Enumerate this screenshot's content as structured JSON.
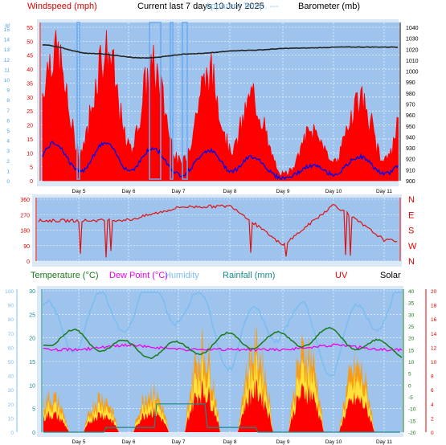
{
  "header": {
    "windspeed_label": "Windspeed (mph)",
    "title": "Current last 7 days 10 July 2025",
    "overlap_label": "Apparent Temp. ---",
    "barometer_label": "Barometer (mb)"
  },
  "day_labels": [
    "Day 5",
    "Day 6",
    "Day 7",
    "Day 8",
    "Day 9",
    "Day 10",
    "Day 11"
  ],
  "bottom_header": {
    "temperature": "Temperature (°C)",
    "dewpoint": "Dew Point (°C)",
    "humidity": "Humidity",
    "rainfall": "Rainfall (mm)",
    "uv": "UV",
    "solar": "Solar"
  },
  "colors": {
    "plot_bg": "#9ec4ee",
    "outer_bg": "#dbe8f6",
    "gust": "#ff0000",
    "wind_avg": "#0000ee",
    "barometer": "#222222",
    "direction": "#e01010",
    "temperature": "#1a7a1a",
    "dewpoint": "#ee00ee",
    "humidity": "#7bbdf0",
    "rainfall": "#1a8a8a",
    "solar": "#ffee40",
    "uv": "#ff9900",
    "uv_peak": "#ff0000",
    "grid": "#ffffff"
  },
  "chart_data": [
    {
      "type": "line",
      "panel": "wind-barometer",
      "x": [
        "Day 5",
        "Day 6",
        "Day 7",
        "Day 8",
        "Day 9",
        "Day 10",
        "Day 11"
      ],
      "series": [
        {
          "name": "Windspeed (mph)",
          "values": [
            20,
            27,
            12,
            25,
            2,
            14,
            15
          ]
        },
        {
          "name": "Barometer (mb)",
          "values": [
            1024,
            1016,
            1012,
            1016,
            1019,
            1021,
            1022
          ]
        }
      ],
      "left_ticks_mph": [
        0,
        5,
        10,
        15,
        20,
        25,
        30,
        35,
        40,
        45,
        50,
        55
      ],
      "far_left_ticks_bf": [
        0,
        1,
        2,
        3,
        4,
        5,
        6,
        7,
        8,
        9,
        10,
        11,
        12,
        13,
        14,
        15
      ],
      "far_left_axis_label": "bf",
      "right_ticks_mb": [
        900,
        910,
        920,
        930,
        940,
        950,
        960,
        970,
        980,
        990,
        1000,
        1010,
        1020,
        1030,
        1040
      ]
    },
    {
      "type": "line",
      "panel": "wind-direction",
      "x": [
        "Day 5",
        "Day 6",
        "Day 7",
        "Day 8",
        "Day 9",
        "Day 10",
        "Day 11"
      ],
      "series": [
        {
          "name": "Wind Direction",
          "values": [
            235,
            240,
            315,
            320,
            90,
            330,
            120
          ]
        }
      ],
      "left_ticks_deg": [
        0,
        90,
        180,
        270,
        360
      ],
      "right_ticks_compass": [
        "N",
        "W",
        "S",
        "E",
        "N"
      ]
    },
    {
      "type": "line",
      "panel": "temperature-solar",
      "x": [
        "Day 5",
        "Day 6",
        "Day 7",
        "Day 8",
        "Day 9",
        "Day 10",
        "Day 11"
      ],
      "series": [
        {
          "name": "Temperature (°C)",
          "values": [
            24,
            19,
            19,
            23,
            23,
            25,
            19
          ]
        },
        {
          "name": "Dew Point (°C)",
          "values": [
            15,
            17,
            15,
            15,
            15,
            17,
            15
          ]
        },
        {
          "name": "Humidity",
          "values": [
            75,
            90,
            95,
            60,
            85,
            55,
            95
          ]
        },
        {
          "name": "Rainfall (mm)",
          "values": [
            0,
            1,
            6,
            1,
            0,
            0,
            0
          ]
        },
        {
          "name": "UV",
          "values": [
            6,
            6,
            7,
            14,
            14,
            14,
            11
          ]
        }
      ],
      "left_ticks_humidity": [
        0,
        10,
        20,
        30,
        40,
        50,
        60,
        70,
        80,
        90,
        100
      ],
      "left_ticks_rain": [
        0,
        5,
        10,
        15,
        20,
        25,
        30
      ],
      "right_ticks_temp": [
        -20,
        -15,
        -10,
        -5,
        0,
        5,
        10,
        15,
        20,
        25,
        30,
        35,
        40
      ],
      "right_ticks_uv": [
        0,
        2,
        4,
        6,
        8,
        10,
        12,
        14,
        16,
        18,
        20
      ]
    }
  ]
}
